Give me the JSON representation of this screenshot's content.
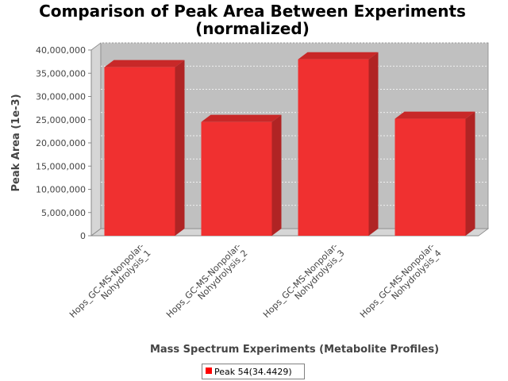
{
  "chart_data": {
    "type": "bar",
    "title_line1": "Comparison of Peak Area Between Experiments",
    "title_line2": "(normalized)",
    "xlabel": "Mass Spectrum Experiments (Metabolite Profiles)",
    "ylabel": "Peak Area (1e-3)",
    "ylim": [
      0,
      40000000
    ],
    "yticks": [
      {
        "value": 0,
        "label": "0"
      },
      {
        "value": 5000000,
        "label": "5,000,000"
      },
      {
        "value": 10000000,
        "label": "10,000,000"
      },
      {
        "value": 15000000,
        "label": "15,000,000"
      },
      {
        "value": 20000000,
        "label": "20,000,000"
      },
      {
        "value": 25000000,
        "label": "25,000,000"
      },
      {
        "value": 30000000,
        "label": "30,000,000"
      },
      {
        "value": 35000000,
        "label": "35,000,000"
      },
      {
        "value": 40000000,
        "label": "40,000,000"
      }
    ],
    "categories": [
      {
        "line1": "Hops_GC-MS-Nonpolar-",
        "line2": "Nohydrolysis_1"
      },
      {
        "line1": "Hops_GC-MS-Nonpolar-",
        "line2": "Nohydrolysis_2"
      },
      {
        "line1": "Hops_GC-MS-Nonpolar-",
        "line2": "Nohydrolysis_3"
      },
      {
        "line1": "Hops_GC-MS-Nonpolar-",
        "line2": "Nohydrolysis_4"
      }
    ],
    "series": [
      {
        "name": "Peak 54(34.4429)",
        "values": [
          36300000,
          24500000,
          38000000,
          25200000
        ],
        "color": "#f03030"
      }
    ],
    "grid": true,
    "legend_position": "bottom",
    "colors": {
      "plot_bg": "#c0c0c0",
      "wall": "#d6d6d6",
      "bar_front": "#f03030",
      "bar_top": "#c82828",
      "bar_side": "#b02424"
    }
  }
}
